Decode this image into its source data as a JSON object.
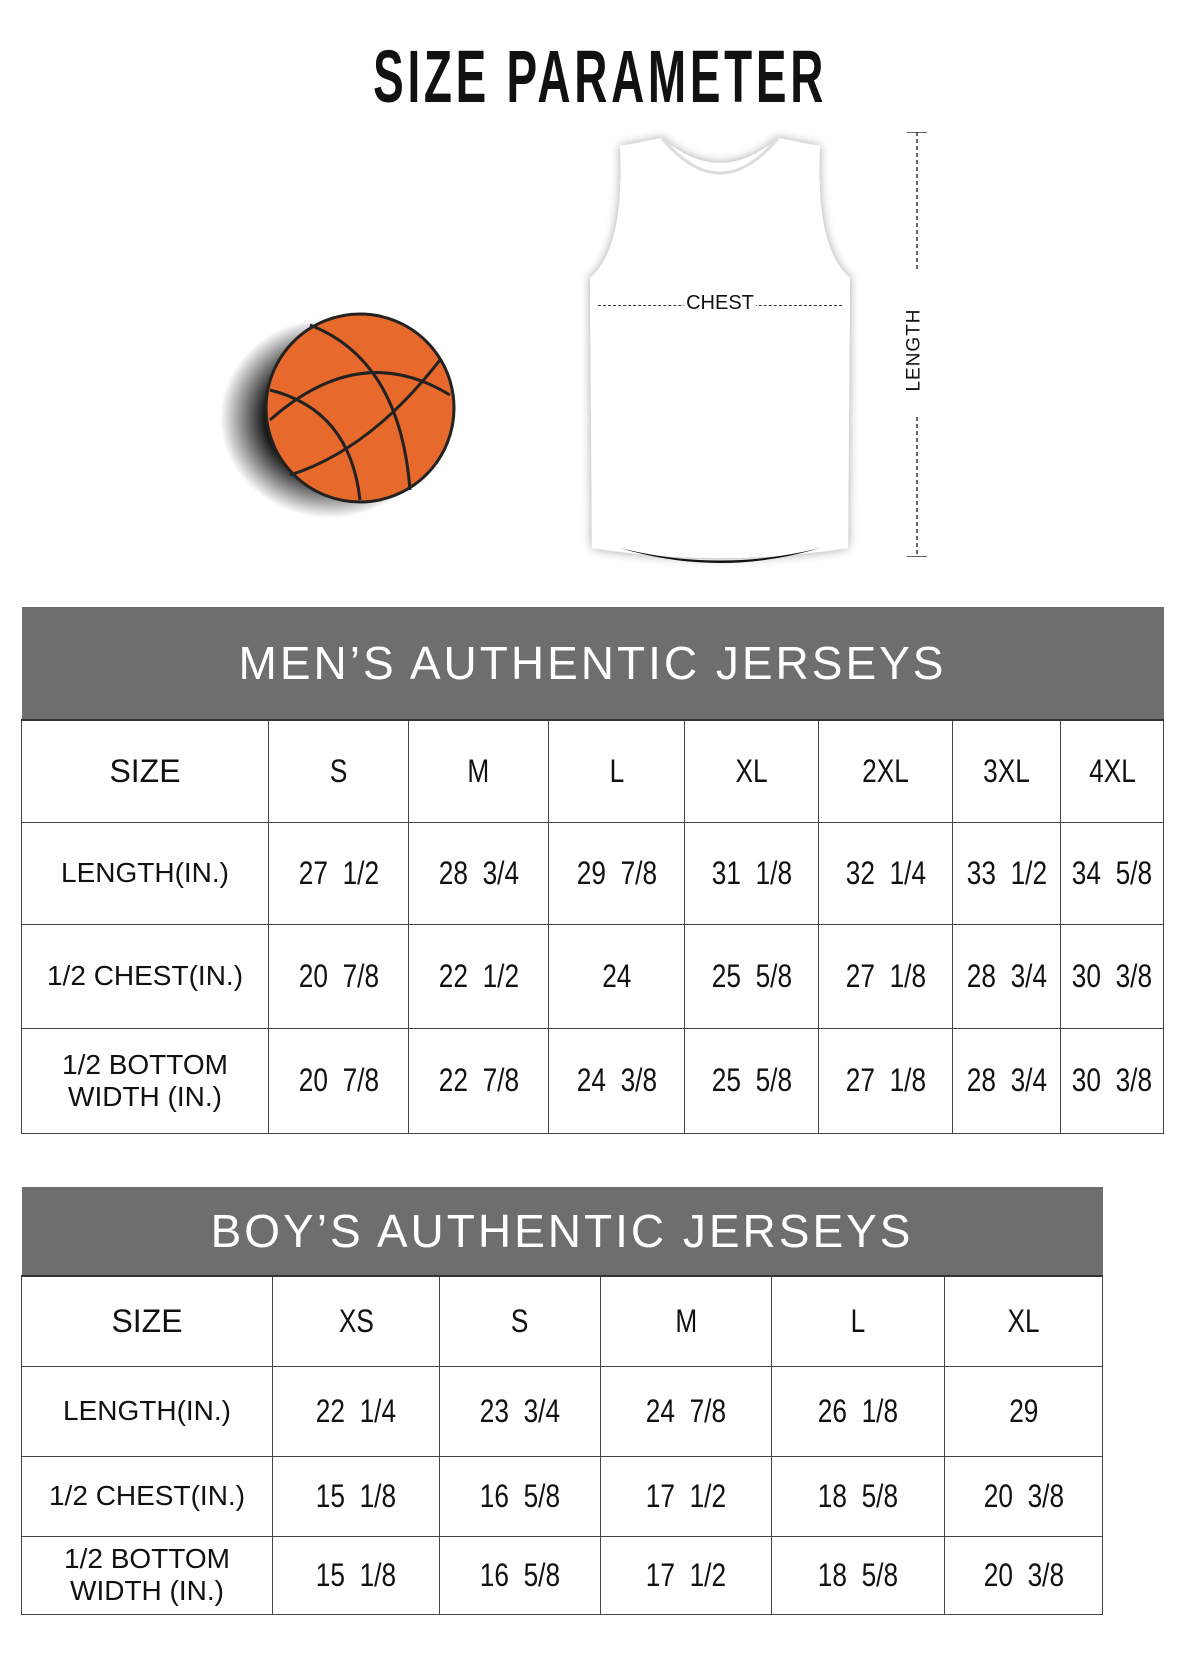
{
  "title": "SIZE PARAMETER",
  "diagram": {
    "chest_label": "CHEST",
    "length_label": "LENGTH"
  },
  "colors": {
    "header_bg": "#6e6e6e",
    "ball": "#e8692c"
  },
  "mens": {
    "title": "MEN’S AUTHENTIC JERSEYS",
    "header": [
      "SIZE",
      "S",
      "M",
      "L",
      "XL",
      "2XL",
      "3XL",
      "4XL"
    ],
    "rows": [
      [
        "LENGTH(IN.)",
        "27  1/2",
        "28  3/4",
        "29  7/8",
        "31  1/8",
        "32  1/4",
        "33  1/2",
        "34  5/8"
      ],
      [
        "1/2 CHEST(IN.)",
        "20  7/8",
        "22  1/2",
        "24",
        "25  5/8",
        "27  1/8",
        "28  3/4",
        "30  3/8"
      ],
      [
        "1/2 BOTTOM WIDTH  (IN.)",
        "20  7/8",
        "22  7/8",
        "24  3/8",
        "25  5/8",
        "27  1/8",
        "28  3/4",
        "30  3/8"
      ]
    ]
  },
  "boys": {
    "title": "BOY’S AUTHENTIC JERSEYS",
    "header": [
      "SIZE",
      "XS",
      "S",
      "M",
      "L",
      "XL"
    ],
    "rows": [
      [
        "LENGTH(IN.)",
        "22  1/4",
        "23  3/4",
        "24  7/8",
        "26  1/8",
        "29"
      ],
      [
        "1/2 CHEST(IN.)",
        "15  1/8",
        "16  5/8",
        "17  1/2",
        "18  5/8",
        "20  3/8"
      ],
      [
        "1/2 BOTTOM WIDTH  (IN.)",
        "15  1/8",
        "16  5/8",
        "17  1/2",
        "18  5/8",
        "20  3/8"
      ]
    ]
  }
}
